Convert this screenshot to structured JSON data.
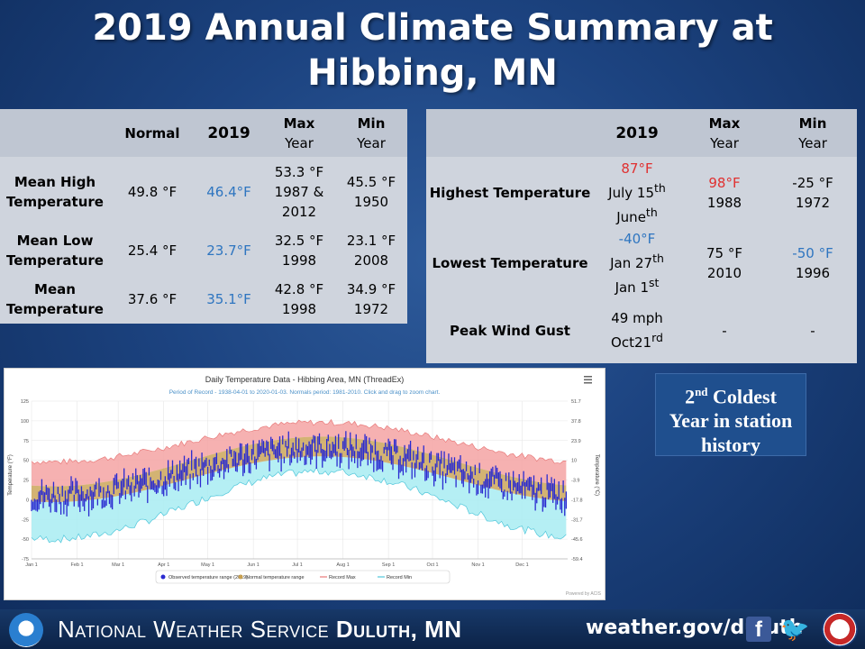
{
  "title": {
    "line1": "2019 Annual Climate Summary at",
    "line2": "Hibbing, MN"
  },
  "left_table": {
    "headers": {
      "normal": "Normal",
      "year": "2019",
      "max_a": "Max",
      "max_b": "Year",
      "min_a": "Min",
      "min_b": "Year"
    },
    "rows": [
      {
        "l1": "Mean High",
        "l2": "Temperature",
        "normal": "49.8 °F",
        "year": "46.4°F",
        "max1": "53.3 °F",
        "max2": "1987 &",
        "max3": "2012",
        "min1": "45.5 °F",
        "min2": "1950"
      },
      {
        "l1": "Mean Low",
        "l2": "Temperature",
        "normal": "25.4 °F",
        "year": "23.7°F",
        "max1": "32.5 °F",
        "max2": "1998",
        "max3": "",
        "min1": "23.1 °F",
        "min2": "2008"
      },
      {
        "l1": "Mean",
        "l2": "Temperature",
        "normal": "37.6 °F",
        "year": "35.1°F",
        "max1": "42.8 °F",
        "max2": "1998",
        "max3": "",
        "min1": "34.9 °F",
        "min2": "1972"
      }
    ]
  },
  "right_table": {
    "headers": {
      "year": "2019",
      "max_a": "Max",
      "max_b": "Year",
      "min_a": "Min",
      "min_b": "Year"
    },
    "rows": [
      {
        "label": "Highest Temperature",
        "y1": "87°F",
        "y2a": "July 15",
        "y2s": "th",
        "y3a": "June",
        "y3s": "th",
        "max1": "98°F",
        "max2": "1988",
        "min1": "-25 °F",
        "min2": "1972"
      },
      {
        "label": "Lowest Temperature",
        "y1": "-40°F",
        "y2a": "Jan 27",
        "y2s": "th",
        "y3a": "Jan 1",
        "y3s": "st",
        "max1": "75 °F",
        "max2": "2010",
        "min1": "-50 °F",
        "min2": "1996"
      },
      {
        "label": "Peak Wind Gust",
        "y1": "49 mph",
        "y2a": "Oct21",
        "y2s": "rd",
        "max1": "-",
        "min1": "-"
      }
    ]
  },
  "chart_data": {
    "type": "area",
    "title": "Daily Temperature Data - Hibbing Area, MN (ThreadEx)",
    "subtitle": "Period of Record - 1938-04-01 to 2020-01-03. Normals period: 1981-2010. Click and drag to zoom chart.",
    "ylabel_left": "Temperature (°F)",
    "ylabel_right": "Temperature (°C)",
    "ylim": [
      -75,
      125
    ],
    "y_ticks": [
      125,
      100,
      75,
      50,
      25,
      0,
      -25,
      -50,
      -75
    ],
    "y_ticks_right": [
      "51.7",
      "37.8",
      "23.9",
      "10",
      "-3.9",
      "-17.8",
      "-31.7",
      "-45.6",
      "-59.4"
    ],
    "x_ticks": [
      "Jan 1",
      "Feb 1",
      "Mar 1",
      "Apr 1",
      "May 1",
      "Jun 1",
      "Jul 1",
      "Aug 1",
      "Sep 1",
      "Oct 1",
      "Nov 1",
      "Dec 1"
    ],
    "x_tick_days": [
      0,
      31,
      59,
      90,
      120,
      151,
      181,
      212,
      243,
      273,
      304,
      334
    ],
    "legend": [
      "Observed temperature range (2019)",
      "Normal temperature range",
      "Record Max",
      "Record Min"
    ],
    "legend_position": "bottom",
    "grid": true,
    "credit": "Powered by ACIS",
    "menu_icon": "hamburger-icon",
    "colors": {
      "observed": "#2a2ad0",
      "normal": "#c8a050",
      "record_max": "#f5a3a3",
      "record_min": "#a8ecf2"
    },
    "normal_high": {
      "min": 17,
      "max": 80
    },
    "normal_low": {
      "min": -3,
      "max": 55
    },
    "record_max": {
      "min": 48,
      "max": 98
    },
    "record_min": {
      "min": -50,
      "max": 36
    },
    "observed_2019": {
      "min": -40,
      "max": 87
    }
  },
  "badge": {
    "ordinal": "2",
    "suffix": "nd",
    "line1": "Coldest",
    "line2": "Year in station",
    "line3": "history"
  },
  "footer": {
    "org": "National Weather Service",
    "office": "Duluth, MN",
    "url": "weather.gov/duluth",
    "facebook_icon": "f",
    "twitter_icon": "🐦"
  },
  "icons": {
    "noaa": "noaa-logo-icon",
    "nws": "nws-logo-icon",
    "facebook": "facebook-icon",
    "twitter": "twitter-icon"
  }
}
